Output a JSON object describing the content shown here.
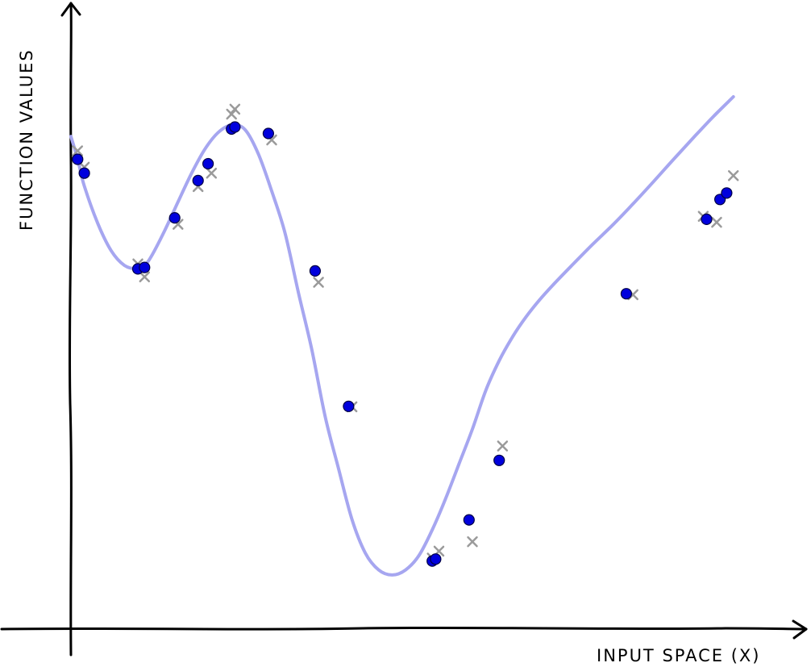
{
  "chart_data": {
    "type": "scatter",
    "xlabel": "INPUT SPACE (X)",
    "ylabel": "FUNCTION VALUES",
    "title": "",
    "xlim": [
      0,
      100
    ],
    "ylim": [
      0,
      100
    ],
    "grid": false,
    "legend": "none",
    "style": "hand-drawn",
    "colors": {
      "curve": "#a6a6f0",
      "points": "#0000dd",
      "points_stroke": "#000044",
      "samples": "#9a9a9a",
      "axes": "#000000"
    },
    "series": [
      {
        "kind": "line",
        "x": [
          0.0,
          1.0,
          2.0,
          4.0,
          6.0,
          8.0,
          10.0,
          11.0,
          12.0,
          14.0,
          16.0,
          18.0,
          20.0,
          22.0,
          24.0,
          26.0,
          28.0,
          30.0,
          32.0,
          34.0,
          36.0,
          38.0,
          40.0,
          42.0,
          44.0,
          46.0,
          48.0,
          50.0,
          52.0,
          54.0,
          56.0,
          58.0,
          60.0,
          62.0,
          64.0,
          66.0,
          68.0,
          70.0,
          72.0,
          75.0,
          78.0,
          81.0,
          84.0,
          87.0,
          90.0,
          93.0,
          96.0,
          99.0
        ],
        "y": [
          92.0,
          87.4,
          82.0,
          74.5,
          69.0,
          66.0,
          65.3,
          66.0,
          67.8,
          73.0,
          78.8,
          84.5,
          89.4,
          92.8,
          94.3,
          93.4,
          88.5,
          81.0,
          72.5,
          60.5,
          49.0,
          35.5,
          25.0,
          14.8,
          8.0,
          4.6,
          3.6,
          4.6,
          7.5,
          12.7,
          19.0,
          26.0,
          33.0,
          40.8,
          46.8,
          51.6,
          55.6,
          59.0,
          62.0,
          66.2,
          70.3,
          74.2,
          78.4,
          82.8,
          87.3,
          91.7,
          96.0,
          100.0
        ]
      },
      {
        "kind": "points",
        "x": [
          1.0,
          2.0,
          10.0,
          11.0,
          15.5,
          19.0,
          20.5,
          24.0,
          24.5,
          29.5,
          36.5,
          41.5,
          54.0,
          54.5,
          59.5,
          64.0,
          83.0,
          95.0,
          97.0,
          98.0
        ],
        "y": [
          87.4,
          84.6,
          65.3,
          65.6,
          75.6,
          83.1,
          86.5,
          93.5,
          93.9,
          92.6,
          64.9,
          37.6,
          6.4,
          6.8,
          14.7,
          26.7,
          60.3,
          75.3,
          79.3,
          80.6
        ]
      },
      {
        "kind": "samples",
        "x": [
          1.0,
          2.0,
          10.0,
          11.0,
          16.0,
          19.0,
          21.0,
          24.0,
          24.5,
          30.0,
          37.0,
          42.0,
          54.0,
          55.0,
          60.0,
          64.5,
          84.0,
          94.5,
          96.5,
          99.0
        ],
        "y": [
          89.1,
          85.8,
          66.3,
          63.7,
          74.3,
          81.9,
          84.6,
          96.5,
          97.5,
          91.3,
          62.6,
          37.5,
          7.0,
          8.4,
          10.3,
          29.6,
          60.1,
          75.9,
          74.7,
          84.1
        ]
      }
    ]
  }
}
